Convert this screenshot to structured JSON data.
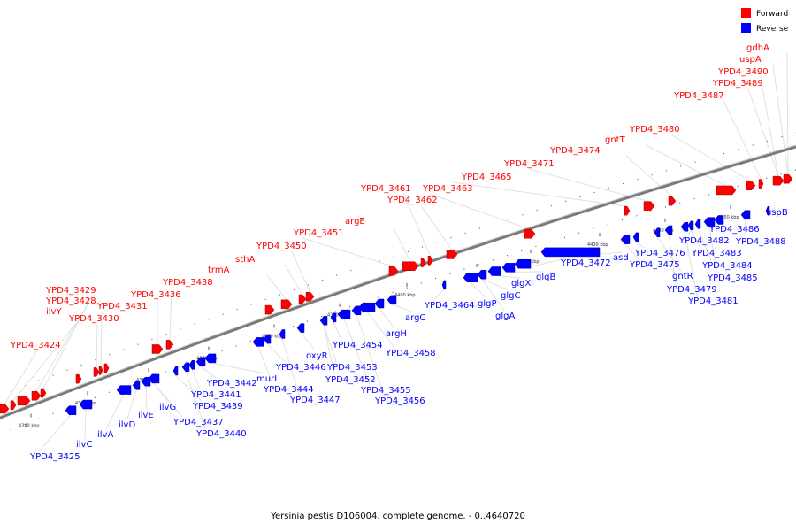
{
  "caption": "Yersinia pestis D106004, complete genome. - 0..4640720",
  "legend": [
    {
      "label": "Forward",
      "color": "#ff0000"
    },
    {
      "label": "Reverse",
      "color": "#0000ff"
    }
  ],
  "colors": {
    "forward": "#ff0000",
    "reverse": "#0000ff",
    "backbone": "#808080",
    "leader": "#d0d0d0"
  },
  "ticks": [
    {
      "label": "4340 kbp",
      "x": 4340
    },
    {
      "label": "4350 kbp",
      "x": 4350
    },
    {
      "label": "4360 kbp",
      "x": 4360
    },
    {
      "label": "4370 kbp",
      "x": 4370
    },
    {
      "label": "4380 kbp",
      "x": 4380
    },
    {
      "label": "4390 kbp",
      "x": 4390
    },
    {
      "label": "4400 kbp",
      "x": 4400
    },
    {
      "label": "4410 kbp",
      "x": 4410
    },
    {
      "label": "4420 kbp",
      "x": 4420
    },
    {
      "label": "4430 kbp",
      "x": 4430
    },
    {
      "label": "4440 kbp",
      "x": 4440
    },
    {
      "label": "4450 kbp",
      "x": 4450
    }
  ],
  "forward_genes": [
    "YPD4_3424",
    "YPD4_3428",
    "YPD4_3429",
    "YPD4_3430",
    "YPD4_3431",
    "ilvY",
    "YPD4_3436",
    "YPD4_3438",
    "trmA",
    "sthA",
    "YPD4_3450",
    "YPD4_3451",
    "argE",
    "YPD4_3461",
    "YPD4_3462",
    "YPD4_3463",
    "YPD4_3465",
    "YPD4_3471",
    "YPD4_3474",
    "gntT",
    "YPD4_3480",
    "YPD4_3487",
    "YPD4_3489",
    "YPD4_3490",
    "uspA",
    "gdhA"
  ],
  "reverse_genes": [
    "YPD4_3425",
    "ilvC",
    "ilvA",
    "ilvD",
    "ilvE",
    "ilvG",
    "YPD4_3437",
    "YPD4_3439",
    "YPD4_3440",
    "YPD4_3441",
    "YPD4_3442",
    "murI",
    "YPD4_3444",
    "YPD4_3446",
    "YPD4_3447",
    "oxyR",
    "YPD4_3452",
    "YPD4_3453",
    "YPD4_3454",
    "YPD4_3455",
    "YPD4_3456",
    "YPD4_3458",
    "argH",
    "argC",
    "YPD4_3464",
    "glgP",
    "glgA",
    "glgC",
    "glgX",
    "glgB",
    "YPD4_3472",
    "asd",
    "YPD4_3475",
    "YPD4_3476",
    "gntR",
    "YPD4_3479",
    "YPD4_3481",
    "YPD4_3482",
    "YPD4_3483",
    "YPD4_3484",
    "YPD4_3485",
    "YPD4_3486",
    "YPD4_3488",
    "uspB"
  ]
}
